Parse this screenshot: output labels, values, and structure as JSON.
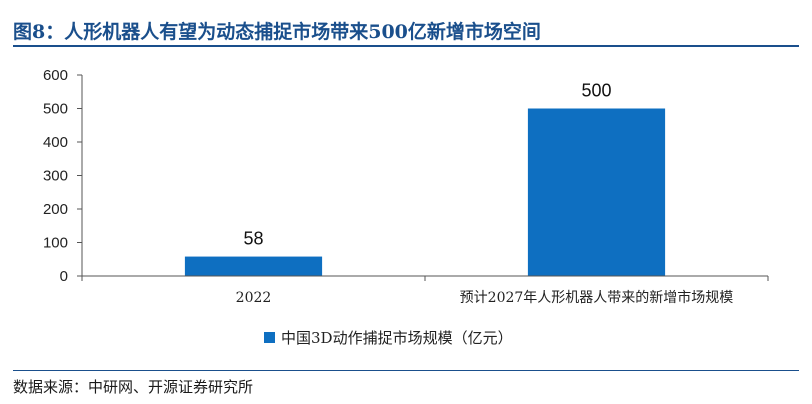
{
  "title": "图8：人形机器人有望为动态捕捉市场带来500亿新增市场空间",
  "source": "数据来源：中研网、开源证券研究所",
  "colors": {
    "title": "#1a4f8c",
    "bar": "#0e6fc1"
  },
  "chart_data": {
    "type": "bar",
    "categories": [
      "2022",
      "预计2027年人形机器人带来的新增市场规模"
    ],
    "series": [
      {
        "name": "中国3D动作捕捉市场规模（亿元）",
        "values": [
          58,
          500
        ]
      }
    ],
    "data_labels": [
      "58",
      "500"
    ],
    "ylim": [
      0,
      600
    ],
    "yticks": [
      "0",
      "100",
      "200",
      "300",
      "400",
      "500",
      "600"
    ],
    "grid": false,
    "legend_position": "bottom"
  }
}
